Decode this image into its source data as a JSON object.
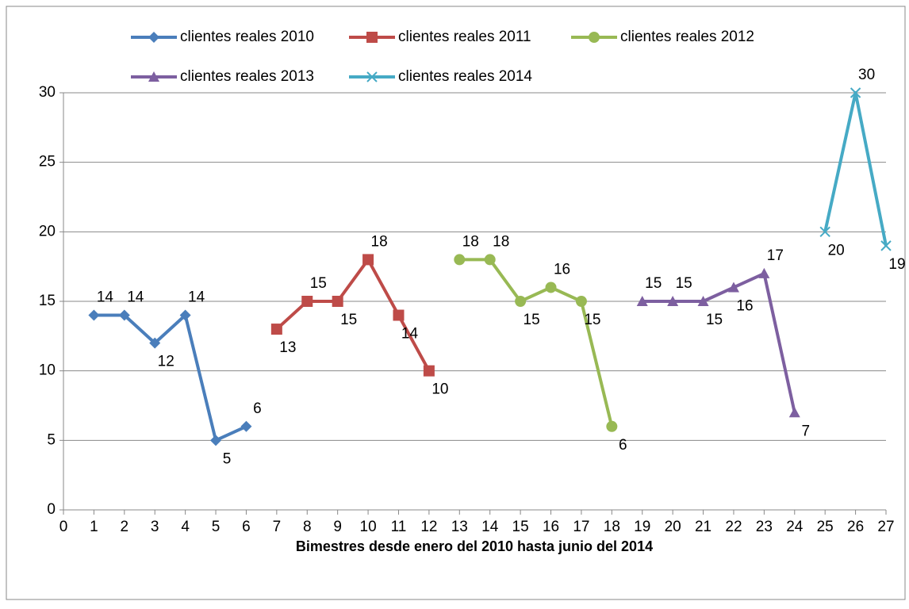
{
  "chart_data": {
    "type": "line",
    "xlabel": "Bimestres desde enero del 2010 hasta junio del 2014",
    "xlim": [
      0,
      27
    ],
    "xticks": [
      0,
      1,
      2,
      3,
      4,
      5,
      6,
      7,
      8,
      9,
      10,
      11,
      12,
      13,
      14,
      15,
      16,
      17,
      18,
      19,
      20,
      21,
      22,
      23,
      24,
      25,
      26,
      27
    ],
    "ylim": [
      0,
      30
    ],
    "yticks": [
      0,
      5,
      10,
      15,
      20,
      25,
      30
    ],
    "grid": true,
    "series": [
      {
        "name": "clientes reales 2010",
        "color": "#4a7ebb",
        "marker": "diamond",
        "x": [
          1,
          2,
          3,
          4,
          5,
          6
        ],
        "values": [
          14,
          14,
          12,
          14,
          5,
          6
        ]
      },
      {
        "name": "clientes reales 2011",
        "color": "#be4b48",
        "marker": "square",
        "x": [
          7,
          8,
          9,
          10,
          11,
          12
        ],
        "values": [
          13,
          15,
          15,
          18,
          14,
          10
        ]
      },
      {
        "name": "clientes reales 2012",
        "color": "#98b954",
        "marker": "circle",
        "x": [
          13,
          14,
          15,
          16,
          17,
          18
        ],
        "values": [
          18,
          18,
          15,
          16,
          15,
          6
        ]
      },
      {
        "name": "clientes reales 2013",
        "color": "#7d5fa0",
        "marker": "triangle",
        "x": [
          19,
          20,
          21,
          22,
          23,
          24
        ],
        "values": [
          15,
          15,
          15,
          16,
          17,
          7
        ]
      },
      {
        "name": "clientes reales 2014",
        "color": "#46aac5",
        "marker": "x",
        "x": [
          25,
          26,
          27
        ],
        "values": [
          20,
          30,
          19
        ]
      }
    ]
  }
}
